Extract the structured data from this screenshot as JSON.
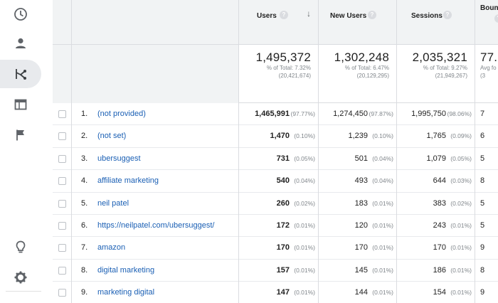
{
  "sidebar": {
    "items": [
      {
        "name": "clock-icon"
      },
      {
        "name": "person-icon"
      },
      {
        "name": "acquisition-icon"
      },
      {
        "name": "behavior-icon"
      },
      {
        "name": "flag-icon"
      }
    ],
    "bottom": [
      {
        "name": "lightbulb-icon"
      },
      {
        "name": "gear-icon"
      }
    ]
  },
  "header": {
    "users": "Users",
    "new_users": "New Users",
    "sessions": "Sessions",
    "bounce": "Bounc",
    "help": "?",
    "sort": "↓"
  },
  "totals": {
    "users": {
      "value": "1,495,372",
      "pct": "% of Total: 7.32%",
      "total": "(20,421,674)"
    },
    "new_users": {
      "value": "1,302,248",
      "pct": "% of Total: 6.47%",
      "total": "(20,129,295)"
    },
    "sessions": {
      "value": "2,035,321",
      "pct": "% of Total: 9.27%",
      "total": "(21,949,267)"
    },
    "bounce": {
      "value": "77.",
      "pct": "Avg fo",
      "total": "(3"
    }
  },
  "rows": [
    {
      "idx": "1.",
      "keyword": "(not provided)",
      "users": "1,465,991",
      "users_pct": "(97.77%)",
      "new_users": "1,274,450",
      "new_users_pct": "(97.87%)",
      "sessions": "1,995,750",
      "sessions_pct": "(98.06%)",
      "bounce": "7"
    },
    {
      "idx": "2.",
      "keyword": "(not set)",
      "users": "1,470",
      "users_pct": "(0.10%)",
      "new_users": "1,239",
      "new_users_pct": "(0.10%)",
      "sessions": "1,765",
      "sessions_pct": "(0.09%)",
      "bounce": "6"
    },
    {
      "idx": "3.",
      "keyword": "ubersuggest",
      "users": "731",
      "users_pct": "(0.05%)",
      "new_users": "501",
      "new_users_pct": "(0.04%)",
      "sessions": "1,079",
      "sessions_pct": "(0.05%)",
      "bounce": "5"
    },
    {
      "idx": "4.",
      "keyword": "affiliate marketing",
      "users": "540",
      "users_pct": "(0.04%)",
      "new_users": "493",
      "new_users_pct": "(0.04%)",
      "sessions": "644",
      "sessions_pct": "(0.03%)",
      "bounce": "8"
    },
    {
      "idx": "5.",
      "keyword": "neil patel",
      "users": "260",
      "users_pct": "(0.02%)",
      "new_users": "183",
      "new_users_pct": "(0.01%)",
      "sessions": "383",
      "sessions_pct": "(0.02%)",
      "bounce": "5"
    },
    {
      "idx": "6.",
      "keyword": "https://neilpatel.com/ubersuggest/",
      "users": "172",
      "users_pct": "(0.01%)",
      "new_users": "120",
      "new_users_pct": "(0.01%)",
      "sessions": "243",
      "sessions_pct": "(0.01%)",
      "bounce": "5"
    },
    {
      "idx": "7.",
      "keyword": "amazon",
      "users": "170",
      "users_pct": "(0.01%)",
      "new_users": "170",
      "new_users_pct": "(0.01%)",
      "sessions": "170",
      "sessions_pct": "(0.01%)",
      "bounce": "9"
    },
    {
      "idx": "8.",
      "keyword": "digital marketing",
      "users": "157",
      "users_pct": "(0.01%)",
      "new_users": "145",
      "new_users_pct": "(0.01%)",
      "sessions": "186",
      "sessions_pct": "(0.01%)",
      "bounce": "8"
    },
    {
      "idx": "9.",
      "keyword": "marketing digital",
      "users": "147",
      "users_pct": "(0.01%)",
      "new_users": "144",
      "new_users_pct": "(0.01%)",
      "sessions": "154",
      "sessions_pct": "(0.01%)",
      "bounce": "9"
    }
  ]
}
